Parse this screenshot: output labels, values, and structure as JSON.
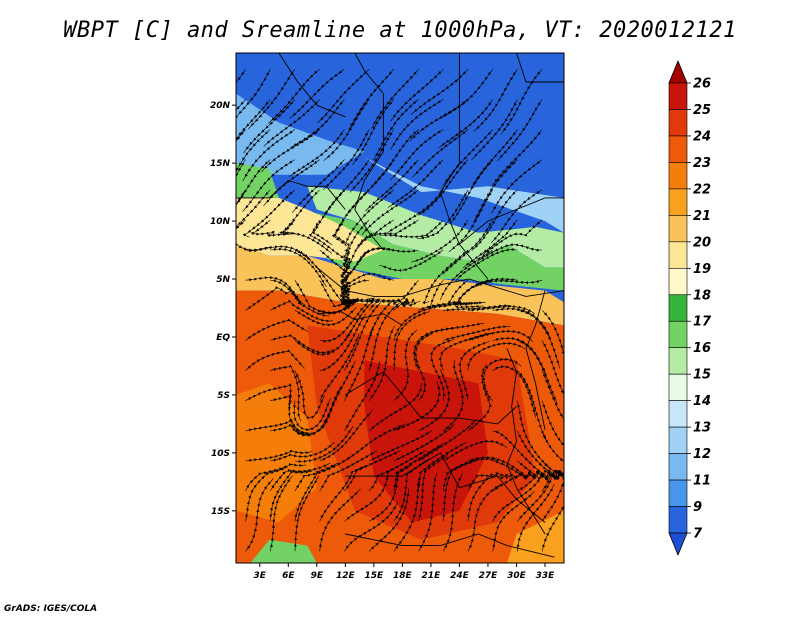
{
  "title": "WBPT [C] and Sreamline at 1000hPa, VT: 2020012121",
  "footer": "GrADS: IGES/COLA",
  "lat_ticks": [
    {
      "label": "20N",
      "lat": 20
    },
    {
      "label": "15N",
      "lat": 15
    },
    {
      "label": "10N",
      "lat": 10
    },
    {
      "label": "5N",
      "lat": 5
    },
    {
      "label": "EQ",
      "lat": 0
    },
    {
      "label": "5S",
      "lat": -5
    },
    {
      "label": "10S",
      "lat": -10
    },
    {
      "label": "15S",
      "lat": -15
    }
  ],
  "lon_ticks": [
    {
      "label": "3E",
      "lon": 3
    },
    {
      "label": "6E",
      "lon": 6
    },
    {
      "label": "9E",
      "lon": 9
    },
    {
      "label": "12E",
      "lon": 12
    },
    {
      "label": "15E",
      "lon": 15
    },
    {
      "label": "18E",
      "lon": 18
    },
    {
      "label": "21E",
      "lon": 21
    },
    {
      "label": "24E",
      "lon": 24
    },
    {
      "label": "27E",
      "lon": 27
    },
    {
      "label": "30E",
      "lon": 30
    },
    {
      "label": "33E",
      "lon": 33
    }
  ],
  "map_extent": {
    "lon": [
      0.5,
      35
    ],
    "lat": [
      -19.5,
      24.5
    ]
  },
  "colorbar": {
    "labels": [
      "26",
      "25",
      "24",
      "23",
      "22",
      "21",
      "20",
      "19",
      "18",
      "17",
      "16",
      "15",
      "14",
      "13",
      "12",
      "11",
      "9",
      "7"
    ],
    "colors": [
      "#a50000",
      "#c8140a",
      "#e03a0a",
      "#ec5a0a",
      "#f57d0a",
      "#f9a01e",
      "#fac35a",
      "#fde696",
      "#fff8c8",
      "#37b43c",
      "#73d264",
      "#b4eba5",
      "#e6fae6",
      "#c8e6fa",
      "#a0d2f5",
      "#78b9f0",
      "#4696eb",
      "#2864dc",
      "#1e50d2"
    ]
  },
  "regions": [
    {
      "color": "#2864dc",
      "points": [
        [
          0.5,
          24.5
        ],
        [
          35,
          24.5
        ],
        [
          35,
          12
        ],
        [
          27,
          13
        ],
        [
          20,
          12
        ],
        [
          14,
          15
        ],
        [
          8,
          17
        ],
        [
          4,
          18
        ],
        [
          0.5,
          17
        ]
      ]
    },
    {
      "color": "#78b9f0",
      "points": [
        [
          0.5,
          21
        ],
        [
          5,
          18.5
        ],
        [
          10,
          17
        ],
        [
          14,
          16
        ],
        [
          10,
          14
        ],
        [
          4,
          14
        ],
        [
          0.5,
          14.5
        ]
      ]
    },
    {
      "color": "#a0d2f5",
      "points": [
        [
          14,
          15.5
        ],
        [
          20,
          13
        ],
        [
          26,
          12
        ],
        [
          33,
          10
        ],
        [
          35,
          9
        ],
        [
          35,
          12
        ],
        [
          27,
          13
        ],
        [
          20,
          12.5
        ]
      ]
    },
    {
      "color": "#73d264",
      "points": [
        [
          0.5,
          15
        ],
        [
          4,
          14.5
        ],
        [
          5,
          12
        ],
        [
          0.5,
          12
        ]
      ]
    },
    {
      "color": "#73d264",
      "points": [
        [
          7,
          11
        ],
        [
          13,
          10
        ],
        [
          17,
          8
        ],
        [
          22,
          7
        ],
        [
          26,
          6.5
        ],
        [
          29,
          8
        ],
        [
          33,
          6
        ],
        [
          35,
          6
        ],
        [
          35,
          4
        ],
        [
          29,
          4.5
        ],
        [
          24,
          5
        ],
        [
          18,
          5
        ],
        [
          12,
          6
        ],
        [
          7,
          8
        ]
      ]
    },
    {
      "color": "#b4eba5",
      "points": [
        [
          8,
          13
        ],
        [
          14,
          12.5
        ],
        [
          20,
          10.5
        ],
        [
          26,
          9
        ],
        [
          32,
          9.5
        ],
        [
          35,
          9
        ],
        [
          35,
          6
        ],
        [
          33,
          6
        ],
        [
          29,
          8
        ],
        [
          26,
          6.5
        ],
        [
          22,
          7
        ],
        [
          17,
          8
        ],
        [
          13,
          10
        ],
        [
          9,
          11
        ]
      ]
    },
    {
      "color": "#fde696",
      "points": [
        [
          0.5,
          12
        ],
        [
          5,
          12
        ],
        [
          8,
          11
        ],
        [
          12,
          9.5
        ],
        [
          16,
          7.5
        ],
        [
          13,
          6.5
        ],
        [
          8,
          7
        ],
        [
          4,
          7
        ],
        [
          0.5,
          8
        ]
      ]
    },
    {
      "color": "#fac35a",
      "points": [
        [
          0.5,
          8
        ],
        [
          4,
          7
        ],
        [
          8,
          7
        ],
        [
          12,
          6
        ],
        [
          16,
          5
        ],
        [
          22,
          5
        ],
        [
          27,
          4.5
        ],
        [
          33,
          4
        ],
        [
          35,
          3
        ],
        [
          35,
          1
        ],
        [
          28,
          2
        ],
        [
          20,
          2.5
        ],
        [
          12,
          3
        ],
        [
          5,
          4
        ],
        [
          0.5,
          4
        ]
      ]
    },
    {
      "color": "#ec5a0a",
      "points": [
        [
          0.5,
          4
        ],
        [
          5,
          4
        ],
        [
          12,
          3
        ],
        [
          20,
          2.5
        ],
        [
          28,
          2
        ],
        [
          35,
          1
        ],
        [
          35,
          -19.5
        ],
        [
          0.5,
          -19.5
        ]
      ]
    },
    {
      "color": "#e03a0a",
      "points": [
        [
          8,
          1
        ],
        [
          16,
          0
        ],
        [
          24,
          -1
        ],
        [
          30,
          -2
        ],
        [
          32,
          -12
        ],
        [
          28,
          -16
        ],
        [
          20,
          -17.5
        ],
        [
          13,
          -15
        ],
        [
          9,
          -6
        ]
      ]
    },
    {
      "color": "#c8140a",
      "points": [
        [
          14,
          -2
        ],
        [
          20,
          -3
        ],
        [
          26,
          -4
        ],
        [
          27,
          -10
        ],
        [
          24,
          -15
        ],
        [
          19,
          -16
        ],
        [
          15,
          -12
        ],
        [
          14,
          -6
        ]
      ]
    },
    {
      "color": "#f57d0a",
      "points": [
        [
          0.5,
          -5
        ],
        [
          4,
          -4
        ],
        [
          8,
          -7
        ],
        [
          9,
          -13
        ],
        [
          5,
          -16
        ],
        [
          0.5,
          -15
        ]
      ]
    },
    {
      "color": "#73d264",
      "points": [
        [
          2,
          -19.5
        ],
        [
          9,
          -19.5
        ],
        [
          8,
          -18
        ],
        [
          4,
          -17.5
        ]
      ]
    },
    {
      "color": "#f9a01e",
      "points": [
        [
          30,
          -17
        ],
        [
          35,
          -15
        ],
        [
          35,
          -19.5
        ],
        [
          29,
          -19.5
        ]
      ]
    }
  ],
  "borders": [
    [
      [
        13,
        24.5
      ],
      [
        14,
        23
      ],
      [
        16,
        21
      ],
      [
        16,
        16
      ],
      [
        14,
        13.5
      ],
      [
        13,
        11
      ],
      [
        14.5,
        9
      ],
      [
        16,
        7.5
      ]
    ],
    [
      [
        21,
        24.5
      ],
      [
        24,
        24.5
      ],
      [
        24,
        20
      ],
      [
        24,
        15
      ],
      [
        22,
        12.5
      ],
      [
        23,
        10
      ],
      [
        24,
        8
      ],
      [
        27,
        5
      ]
    ],
    [
      [
        0.5,
        12
      ],
      [
        4,
        12
      ],
      [
        6,
        13.5
      ],
      [
        8,
        13
      ],
      [
        10,
        13
      ],
      [
        12,
        11
      ]
    ],
    [
      [
        9,
        6
      ],
      [
        12,
        4
      ],
      [
        15,
        3.5
      ],
      [
        18,
        3.5
      ],
      [
        22,
        4.5
      ],
      [
        25,
        5
      ],
      [
        27,
        4.5
      ],
      [
        31,
        3.5
      ],
      [
        35,
        4
      ]
    ],
    [
      [
        9,
        2
      ],
      [
        11.5,
        2.2
      ],
      [
        13,
        1.5
      ],
      [
        16,
        2
      ],
      [
        18,
        1
      ]
    ],
    [
      [
        12,
        -5
      ],
      [
        14,
        -4
      ],
      [
        16,
        -3
      ],
      [
        18,
        -5
      ],
      [
        20,
        -7
      ],
      [
        24,
        -7
      ],
      [
        28,
        -7.5
      ],
      [
        30,
        -6
      ]
    ],
    [
      [
        12,
        -12
      ],
      [
        18,
        -12
      ],
      [
        22,
        -10
      ],
      [
        24,
        -13
      ],
      [
        28,
        -12
      ],
      [
        30,
        -14
      ],
      [
        33,
        -16
      ]
    ],
    [
      [
        12,
        -17
      ],
      [
        18,
        -18
      ],
      [
        22,
        -18
      ],
      [
        26,
        -17
      ],
      [
        29,
        -18
      ],
      [
        34,
        -19
      ]
    ],
    [
      [
        29,
        -1
      ],
      [
        30,
        -3
      ],
      [
        29.5,
        -6
      ],
      [
        30,
        -9
      ],
      [
        29,
        -11
      ],
      [
        30,
        -13
      ],
      [
        33,
        -17
      ]
    ],
    [
      [
        33,
        4
      ],
      [
        32,
        1
      ],
      [
        31,
        -1
      ],
      [
        32,
        -4
      ],
      [
        33,
        -8
      ]
    ],
    [
      [
        30,
        24.5
      ],
      [
        31,
        22
      ],
      [
        35,
        22
      ]
    ],
    [
      [
        5,
        24.5
      ],
      [
        7,
        22
      ],
      [
        9,
        20
      ],
      [
        12,
        19
      ]
    ],
    [
      [
        24,
        8
      ],
      [
        27,
        10
      ],
      [
        30,
        11
      ],
      [
        33,
        12
      ],
      [
        35,
        12
      ]
    ]
  ],
  "streamline_field": {
    "lon": [
      0.5,
      35
    ],
    "lat": [
      -19.5,
      24.5
    ]
  }
}
